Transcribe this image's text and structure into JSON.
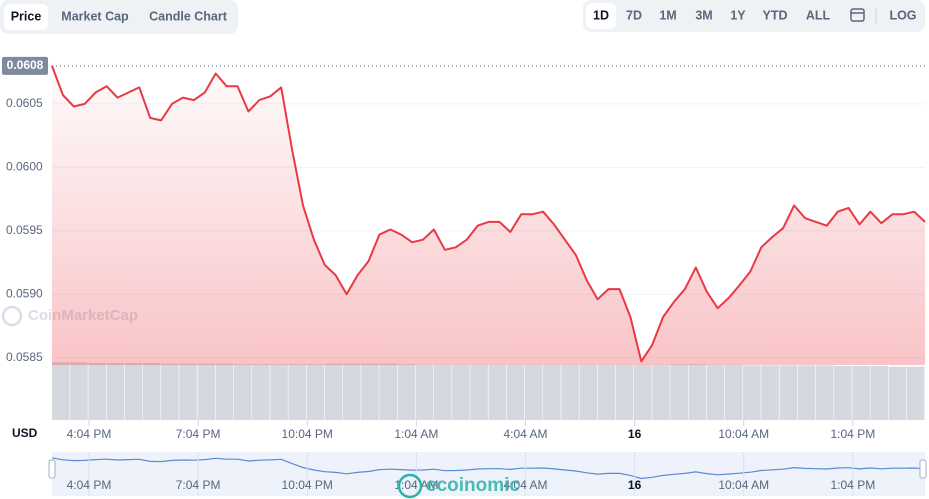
{
  "tabs": [
    "Price",
    "Market Cap",
    "Candle Chart"
  ],
  "ranges": [
    "1D",
    "7D",
    "1M",
    "3M",
    "1Y",
    "YTD",
    "ALL"
  ],
  "log_button": "LOG",
  "currency": "USD",
  "watermarks": [
    "CoinMarketCap",
    "ecoinomic"
  ],
  "chart_data": {
    "type": "line",
    "color": "#ea3943",
    "current_price": 0.0608,
    "x": [
      15.05,
      15.35,
      15.65,
      15.95,
      16.25,
      16.55,
      16.85,
      17.15,
      17.45,
      17.75,
      18.05,
      18.35,
      18.65,
      18.95,
      19.25,
      19.55,
      19.85,
      20.15,
      20.45,
      20.75,
      21.05,
      21.35,
      21.65,
      21.95,
      22.25,
      22.55,
      22.85,
      23.15,
      23.45,
      23.75,
      24.05,
      24.35,
      24.65,
      24.95,
      25.25,
      25.55,
      25.85,
      26.15,
      26.45,
      26.75,
      27.05,
      27.35,
      27.65,
      27.95,
      28.25,
      28.55,
      28.85,
      29.15,
      29.45,
      29.75,
      30.05,
      30.35,
      30.65,
      30.95,
      31.25,
      31.55,
      31.85,
      32.15,
      32.45,
      32.75,
      33.05,
      33.35,
      33.65,
      33.95,
      34.25,
      34.55,
      34.85,
      35.15,
      35.45,
      35.75,
      36.05,
      36.35,
      36.65,
      36.95,
      37.25,
      37.55,
      37.85,
      38.15,
      38.45,
      38.75,
      39.05
    ],
    "values": [
      0.0608,
      0.06057,
      0.06048,
      0.0605,
      0.06059,
      0.06064,
      0.06055,
      0.06059,
      0.06063,
      0.06039,
      0.06037,
      0.0605,
      0.06055,
      0.06053,
      0.06059,
      0.06074,
      0.06064,
      0.06064,
      0.06044,
      0.06053,
      0.06056,
      0.06063,
      0.06014,
      0.0597,
      0.05943,
      0.05923,
      0.05915,
      0.059,
      0.05915,
      0.05926,
      0.05947,
      0.05951,
      0.05947,
      0.05941,
      0.05943,
      0.05951,
      0.05935,
      0.05937,
      0.05943,
      0.05954,
      0.05957,
      0.05957,
      0.05949,
      0.05963,
      0.05963,
      0.05965,
      0.05955,
      0.05943,
      0.05931,
      0.05911,
      0.05896,
      0.05904,
      0.05904,
      0.05882,
      0.05847,
      0.0586,
      0.05882,
      0.05894,
      0.05904,
      0.05921,
      0.05902,
      0.05889,
      0.05897,
      0.05907,
      0.05918,
      0.05937,
      0.05945,
      0.05952,
      0.0597,
      0.0596,
      0.05957,
      0.05954,
      0.05965,
      0.05968,
      0.05955,
      0.05965,
      0.05956,
      0.05963,
      0.05963,
      0.05965,
      0.05957
    ],
    "xlim": [
      15.05,
      39.05
    ],
    "xticks": [
      {
        "value": 16.0667,
        "label": "4:04 PM"
      },
      {
        "value": 19.0667,
        "label": "7:04 PM"
      },
      {
        "value": 22.0667,
        "label": "10:04 PM"
      },
      {
        "value": 25.0667,
        "label": "1:04 AM"
      },
      {
        "value": 28.0667,
        "label": "4:04 AM"
      },
      {
        "value": 31.0667,
        "label": "16"
      },
      {
        "value": 34.0667,
        "label": "10:04 AM"
      },
      {
        "value": 37.0667,
        "label": "1:04 PM"
      }
    ],
    "ylim": [
      0.0583,
      0.061
    ],
    "yticks": [
      0.0585,
      {
        "value": 0.059,
        "label": "0.0590"
      },
      0.0595,
      {
        "value": 0.06,
        "label": "0.0600"
      },
      0.0605
    ],
    "grid": true,
    "volume": {
      "color": "#d5d8de",
      "ylim": [
        0,
        100
      ],
      "values": [
        96,
        96,
        95,
        95,
        95,
        95,
        94,
        94,
        94,
        94,
        93,
        93,
        93,
        93,
        93,
        94,
        94,
        94,
        94,
        93,
        92,
        92,
        92,
        92,
        92,
        92,
        92,
        92,
        92,
        92,
        92,
        92,
        92,
        92,
        93,
        93,
        92,
        92,
        91,
        91,
        91,
        91,
        91,
        90,
        90,
        90,
        89,
        89
      ]
    }
  }
}
